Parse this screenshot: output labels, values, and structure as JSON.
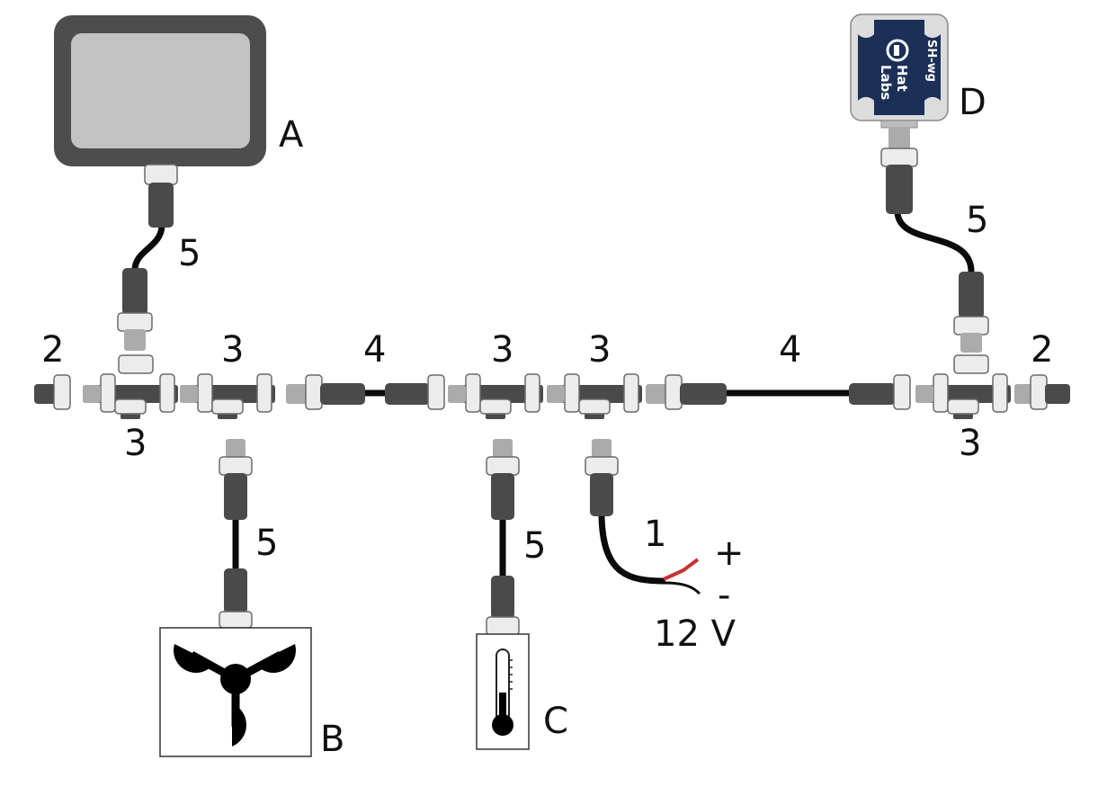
{
  "labels": {
    "device_a": "A",
    "device_b": "B",
    "device_c": "C",
    "device_d": "D",
    "power_cable": "1",
    "terminator_left": "2",
    "terminator_right": "2",
    "tee_top_1": "3",
    "tee_top_2": "3",
    "tee_top_3": "3",
    "tee_bottom_1": "3",
    "tee_bottom_2": "3",
    "backbone_left": "4",
    "backbone_right": "4",
    "drop_a": "5",
    "drop_b": "5",
    "drop_c": "5",
    "drop_d": "5",
    "plus": "+",
    "minus": "-",
    "voltage": "12 V"
  },
  "device_d": {
    "brand_line1": "Hat",
    "brand_line2": "Labs",
    "model": "SH-wg"
  },
  "colors": {
    "connector_dark": "#4a4a4a",
    "connector_light": "#ababab",
    "nut_white": "#ececec",
    "cable": "#0b0b0b",
    "display_frame": "#4d4d4d",
    "display_screen": "#c2c2c2",
    "hatlabs_navy": "#1b2f57",
    "wire_red": "#c83232"
  }
}
